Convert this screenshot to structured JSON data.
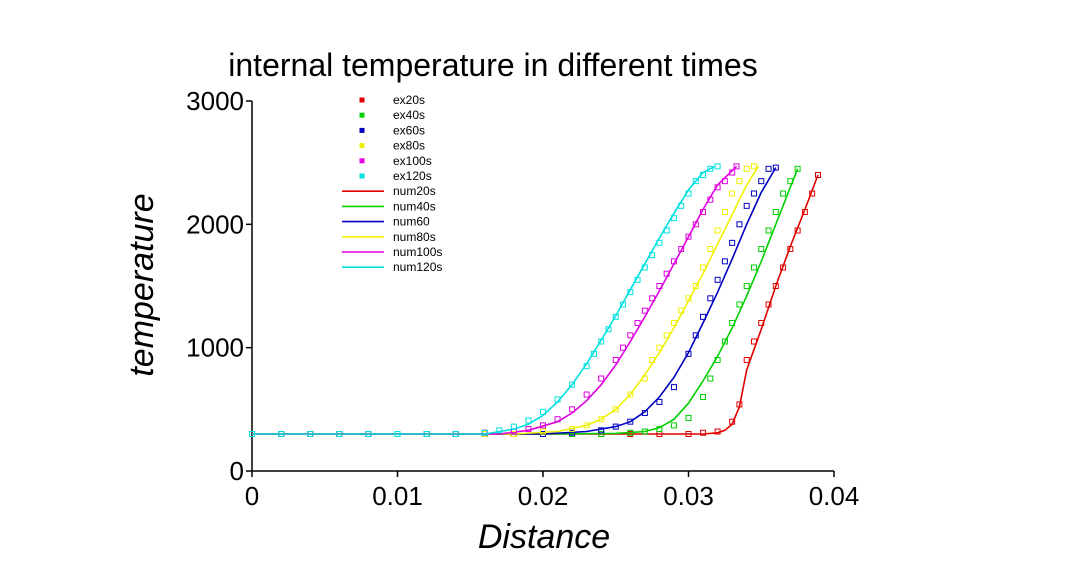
{
  "chart_data": {
    "type": "scatter",
    "title": "internal temperature in different times",
    "xlabel": "Distance",
    "ylabel": "temperature",
    "xlim": [
      0,
      0.04
    ],
    "ylim": [
      0,
      3000
    ],
    "xticks": [
      "0",
      "0.01",
      "0.02",
      "0.03",
      "0.04"
    ],
    "yticks": [
      "0",
      "1000",
      "2000",
      "3000"
    ],
    "grid": false,
    "legend_position": "top-left",
    "series": [
      {
        "name": "ex20s",
        "kind": "marker",
        "color": "#e00000",
        "x": [
          0.0,
          0.002,
          0.004,
          0.006,
          0.008,
          0.01,
          0.012,
          0.014,
          0.016,
          0.018,
          0.02,
          0.022,
          0.024,
          0.026,
          0.028,
          0.03,
          0.031,
          0.032,
          0.033,
          0.0335,
          0.034,
          0.0345,
          0.035,
          0.0355,
          0.036,
          0.0365,
          0.037,
          0.0375,
          0.038,
          0.0385,
          0.0389
        ],
        "y": [
          300,
          300,
          300,
          300,
          300,
          300,
          300,
          300,
          300,
          300,
          300,
          300,
          300,
          300,
          300,
          300,
          310,
          320,
          400,
          540,
          900,
          1050,
          1200,
          1350,
          1500,
          1650,
          1800,
          1950,
          2100,
          2250,
          2400
        ]
      },
      {
        "name": "ex40s",
        "kind": "marker",
        "color": "#00d000",
        "x": [
          0.0,
          0.002,
          0.004,
          0.006,
          0.008,
          0.01,
          0.012,
          0.014,
          0.016,
          0.018,
          0.02,
          0.022,
          0.024,
          0.026,
          0.027,
          0.028,
          0.029,
          0.03,
          0.031,
          0.0315,
          0.032,
          0.0325,
          0.033,
          0.0335,
          0.034,
          0.0345,
          0.035,
          0.0355,
          0.036,
          0.0365,
          0.037,
          0.0375
        ],
        "y": [
          300,
          300,
          300,
          300,
          300,
          300,
          300,
          300,
          300,
          300,
          300,
          300,
          300,
          310,
          320,
          340,
          370,
          430,
          600,
          750,
          900,
          1050,
          1200,
          1350,
          1500,
          1650,
          1800,
          1950,
          2100,
          2250,
          2350,
          2450
        ]
      },
      {
        "name": "ex60s",
        "kind": "marker",
        "color": "#0000c0",
        "x": [
          0.0,
          0.002,
          0.004,
          0.006,
          0.008,
          0.01,
          0.012,
          0.014,
          0.016,
          0.018,
          0.02,
          0.022,
          0.024,
          0.025,
          0.026,
          0.027,
          0.028,
          0.029,
          0.03,
          0.0305,
          0.031,
          0.0315,
          0.032,
          0.0325,
          0.033,
          0.0335,
          0.034,
          0.0345,
          0.035,
          0.0355,
          0.036
        ],
        "y": [
          300,
          300,
          300,
          300,
          300,
          300,
          300,
          300,
          300,
          300,
          300,
          310,
          330,
          360,
          400,
          470,
          560,
          680,
          950,
          1100,
          1250,
          1400,
          1550,
          1700,
          1850,
          2000,
          2150,
          2250,
          2350,
          2450,
          2460
        ]
      },
      {
        "name": "ex80s",
        "kind": "marker",
        "color": "#f0f000",
        "x": [
          0.0,
          0.002,
          0.004,
          0.006,
          0.008,
          0.01,
          0.012,
          0.014,
          0.016,
          0.018,
          0.02,
          0.022,
          0.023,
          0.024,
          0.025,
          0.026,
          0.027,
          0.0275,
          0.028,
          0.0285,
          0.029,
          0.0295,
          0.03,
          0.0305,
          0.031,
          0.0315,
          0.032,
          0.0325,
          0.033,
          0.0335,
          0.034,
          0.0345
        ],
        "y": [
          300,
          300,
          300,
          300,
          300,
          300,
          300,
          300,
          300,
          300,
          320,
          340,
          370,
          420,
          500,
          620,
          750,
          900,
          1000,
          1100,
          1200,
          1300,
          1400,
          1500,
          1650,
          1800,
          1950,
          2100,
          2250,
          2350,
          2450,
          2470
        ]
      },
      {
        "name": "ex100s",
        "kind": "marker",
        "color": "#e000e0",
        "x": [
          0.0,
          0.002,
          0.004,
          0.006,
          0.008,
          0.01,
          0.012,
          0.014,
          0.016,
          0.018,
          0.019,
          0.02,
          0.021,
          0.022,
          0.023,
          0.024,
          0.025,
          0.0255,
          0.026,
          0.0265,
          0.027,
          0.0275,
          0.028,
          0.0285,
          0.029,
          0.0295,
          0.03,
          0.0305,
          0.031,
          0.0315,
          0.032,
          0.0325,
          0.033,
          0.0333
        ],
        "y": [
          300,
          300,
          300,
          300,
          300,
          300,
          300,
          300,
          310,
          320,
          340,
          370,
          420,
          500,
          620,
          750,
          900,
          1000,
          1100,
          1200,
          1300,
          1400,
          1500,
          1600,
          1700,
          1800,
          1900,
          2000,
          2100,
          2200,
          2300,
          2350,
          2420,
          2470
        ]
      },
      {
        "name": "ex120s",
        "kind": "marker",
        "color": "#00e0e0",
        "x": [
          0.0,
          0.002,
          0.004,
          0.006,
          0.008,
          0.01,
          0.012,
          0.014,
          0.016,
          0.017,
          0.018,
          0.019,
          0.02,
          0.021,
          0.022,
          0.023,
          0.0235,
          0.024,
          0.0245,
          0.025,
          0.0255,
          0.026,
          0.0265,
          0.027,
          0.0275,
          0.028,
          0.0285,
          0.029,
          0.0295,
          0.03,
          0.0305,
          0.031,
          0.0315,
          0.032
        ],
        "y": [
          300,
          300,
          300,
          300,
          300,
          300,
          300,
          300,
          310,
          330,
          360,
          410,
          480,
          580,
          700,
          850,
          950,
          1050,
          1150,
          1250,
          1350,
          1450,
          1550,
          1650,
          1750,
          1850,
          1950,
          2050,
          2150,
          2250,
          2350,
          2400,
          2450,
          2470
        ]
      },
      {
        "name": "num20s",
        "kind": "line",
        "color": "#e00000",
        "x": [
          0.0,
          0.01,
          0.02,
          0.028,
          0.031,
          0.032,
          0.0325,
          0.033,
          0.0335,
          0.034,
          0.035,
          0.036,
          0.037,
          0.038,
          0.0389
        ],
        "y": [
          300,
          300,
          300,
          300,
          300,
          310,
          330,
          380,
          520,
          820,
          1150,
          1500,
          1820,
          2120,
          2400
        ]
      },
      {
        "name": "num40s",
        "kind": "line",
        "color": "#00d000",
        "x": [
          0.0,
          0.01,
          0.02,
          0.025,
          0.027,
          0.028,
          0.029,
          0.03,
          0.031,
          0.032,
          0.033,
          0.034,
          0.035,
          0.036,
          0.037,
          0.0375
        ],
        "y": [
          300,
          300,
          300,
          305,
          320,
          350,
          420,
          550,
          730,
          930,
          1160,
          1420,
          1700,
          2000,
          2300,
          2450
        ]
      },
      {
        "name": "num60",
        "kind": "line",
        "color": "#0000c0",
        "x": [
          0.0,
          0.01,
          0.02,
          0.023,
          0.025,
          0.026,
          0.027,
          0.028,
          0.029,
          0.03,
          0.031,
          0.032,
          0.033,
          0.034,
          0.035,
          0.036
        ],
        "y": [
          300,
          300,
          300,
          320,
          360,
          400,
          480,
          600,
          760,
          960,
          1200,
          1450,
          1720,
          2000,
          2260,
          2460
        ]
      },
      {
        "name": "num80s",
        "kind": "line",
        "color": "#f0f000",
        "x": [
          0.0,
          0.01,
          0.018,
          0.021,
          0.023,
          0.024,
          0.025,
          0.026,
          0.027,
          0.028,
          0.029,
          0.03,
          0.031,
          0.032,
          0.033,
          0.034,
          0.0348
        ],
        "y": [
          300,
          300,
          300,
          320,
          370,
          420,
          500,
          620,
          780,
          960,
          1160,
          1380,
          1600,
          1840,
          2080,
          2320,
          2470
        ]
      },
      {
        "name": "num100s",
        "kind": "line",
        "color": "#e000e0",
        "x": [
          0.0,
          0.01,
          0.017,
          0.019,
          0.021,
          0.022,
          0.023,
          0.024,
          0.025,
          0.026,
          0.027,
          0.028,
          0.029,
          0.03,
          0.031,
          0.032,
          0.0333
        ],
        "y": [
          300,
          300,
          300,
          330,
          400,
          470,
          570,
          700,
          860,
          1050,
          1250,
          1460,
          1680,
          1900,
          2120,
          2320,
          2470
        ]
      },
      {
        "name": "num120s",
        "kind": "line",
        "color": "#00e0e0",
        "x": [
          0.0,
          0.01,
          0.016,
          0.018,
          0.019,
          0.02,
          0.021,
          0.022,
          0.023,
          0.024,
          0.025,
          0.026,
          0.027,
          0.028,
          0.029,
          0.03,
          0.031,
          0.0318
        ],
        "y": [
          300,
          300,
          300,
          340,
          380,
          450,
          560,
          700,
          870,
          1060,
          1260,
          1470,
          1680,
          1890,
          2090,
          2280,
          2420,
          2470
        ]
      }
    ]
  }
}
